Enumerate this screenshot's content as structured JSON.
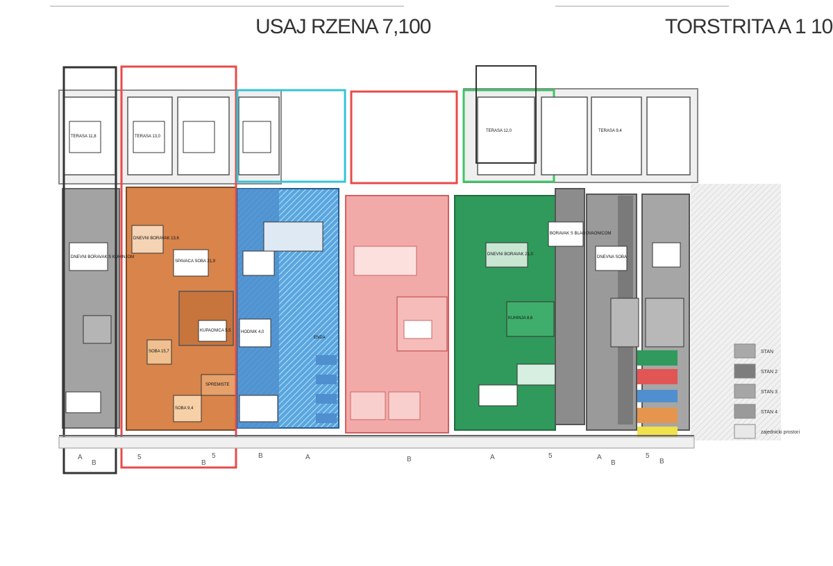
{
  "titles": {
    "left": "USAJ RZENA 7,100",
    "right": "TORSTRITA A 1 10"
  },
  "legend": [
    {
      "color": "#a9a9a9",
      "label": "STAN"
    },
    {
      "color": "#7d7d7d",
      "label": "STAN 2"
    },
    {
      "color": "#a6a6a6",
      "label": "STAN 3"
    },
    {
      "color": "#9a9a9a",
      "label": "STAN 4"
    },
    {
      "color": "#e8e8e8",
      "label": "zajednicki prostori"
    }
  ],
  "colors": {
    "orange": "#d9844a",
    "blue": "#4f8fcf",
    "green": "#2f9a5b",
    "red": "#f2aaa8",
    "gray": "#9a9a9a",
    "darkgray": "#7a7a7a",
    "outline_red": "#e84a4a",
    "outline_cyan": "#35c3d8",
    "outline_green": "#3ec46a"
  },
  "rooms": [
    {
      "id": "r1",
      "label": "DNEVNI BORAVAK S KUHINJOM"
    },
    {
      "id": "r2",
      "label": "DNEVNI BORAVAK 13,6"
    },
    {
      "id": "r3",
      "label": "SPAVACA SOBA 21,9"
    },
    {
      "id": "r4",
      "label": "KUPAONICA 5,5"
    },
    {
      "id": "r5",
      "label": "SOBA 15,7"
    },
    {
      "id": "r6",
      "label": "SOBA 9,4"
    },
    {
      "id": "r7",
      "label": "HODNIK 4,0"
    },
    {
      "id": "r8",
      "label": "DNEVNI BORAVAK 21,0"
    },
    {
      "id": "r9",
      "label": "KUHINJA 8,6"
    },
    {
      "id": "r10",
      "label": "BORAVAK S BLAGOVAONICOM"
    },
    {
      "id": "r11",
      "label": "DNEVNA SOBA"
    },
    {
      "id": "r12",
      "label": "TERASA 11,8"
    },
    {
      "id": "r13",
      "label": "TERASA 13,0"
    },
    {
      "id": "r14",
      "label": "TERASA 12,0"
    },
    {
      "id": "r15",
      "label": "TERASA 9,4"
    },
    {
      "id": "r16",
      "label": "ENDA"
    },
    {
      "id": "r17",
      "label": "SPREMISTE"
    }
  ],
  "axis_labels": [
    "A",
    "B",
    "5",
    "B",
    "5",
    "B",
    "A",
    "B",
    "A",
    "5",
    "A",
    "B",
    "5",
    "B"
  ]
}
